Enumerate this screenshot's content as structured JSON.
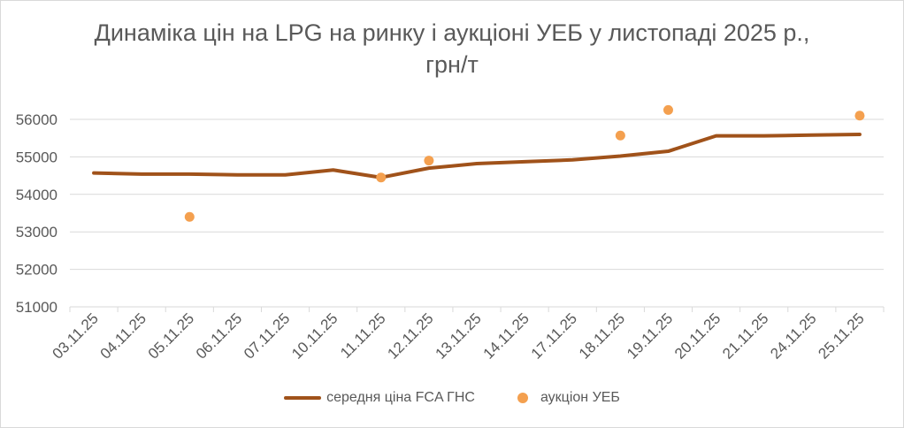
{
  "chart_data": {
    "type": "line",
    "title_line1": "Динаміка цін на LPG на ринку і аукціоні УЕБ у листопаді 2025 р.,",
    "title_line2": "грн/т",
    "categories": [
      "03.11.25",
      "04.11.25",
      "05.11.25",
      "06.11.25",
      "07.11.25",
      "10.11.25",
      "11.11.25",
      "12.11.25",
      "13.11.25",
      "14.11.25",
      "17.11.25",
      "18.11.25",
      "19.11.25",
      "20.11.25",
      "21.11.25",
      "24.11.25",
      "25.11.25"
    ],
    "ylim": [
      51000,
      56000
    ],
    "yticks": [
      "51000",
      "52000",
      "53000",
      "54000",
      "55000",
      "56000"
    ],
    "grid": true,
    "legend_position": "bottom",
    "series": [
      {
        "name": "середня ціна FCA ГНС",
        "type": "line",
        "color": "#a0521a",
        "values": [
          54570,
          54540,
          54540,
          54520,
          54520,
          54650,
          54450,
          54700,
          54820,
          54870,
          54920,
          55020,
          55150,
          55560,
          55560,
          55580,
          55600
        ]
      },
      {
        "name": "аукціон УЕБ",
        "type": "scatter",
        "color": "#f4a04f",
        "values": [
          null,
          null,
          53400,
          null,
          null,
          null,
          54450,
          54900,
          null,
          null,
          null,
          55570,
          56250,
          null,
          null,
          null,
          56100
        ]
      }
    ]
  }
}
